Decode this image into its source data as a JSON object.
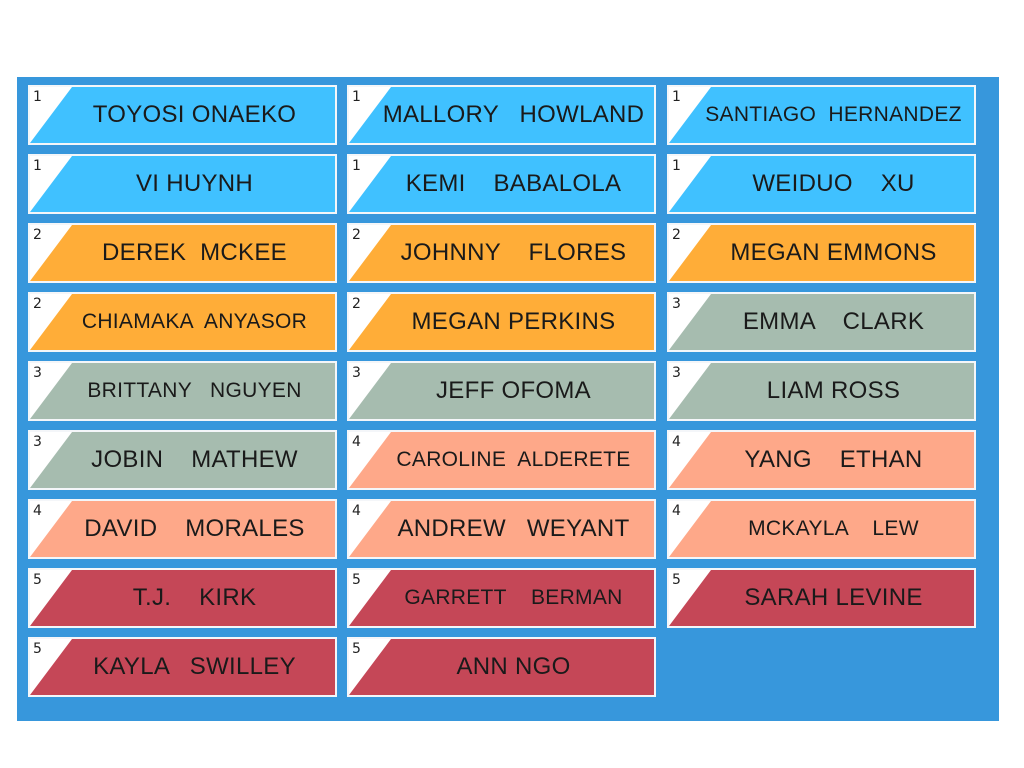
{
  "colors": {
    "board": "#3797dc",
    "group_1": "#40c1ff",
    "group_2": "#ffad38",
    "group_3": "#a6bcaf",
    "group_4": "#fea889",
    "group_5": "#c54757"
  },
  "tiles": [
    {
      "number": "1",
      "name": "TOYOSI ONAEKO"
    },
    {
      "number": "1",
      "name": "MALLORY   HOWLAND"
    },
    {
      "number": "1",
      "name": "SANTIAGO  HERNANDEZ"
    },
    {
      "number": "1",
      "name": "VI HUYNH"
    },
    {
      "number": "1",
      "name": "KEMI    BABALOLA"
    },
    {
      "number": "1",
      "name": "WEIDUO    XU"
    },
    {
      "number": "2",
      "name": "DEREK  MCKEE"
    },
    {
      "number": "2",
      "name": "JOHNNY    FLORES"
    },
    {
      "number": "2",
      "name": "MEGAN EMMONS"
    },
    {
      "number": "2",
      "name": "CHIAMAKA  ANYASOR"
    },
    {
      "number": "2",
      "name": "MEGAN PERKINS"
    },
    {
      "number": "3",
      "name": "EMMA    CLARK"
    },
    {
      "number": "3",
      "name": "BRITTANY   NGUYEN"
    },
    {
      "number": "3",
      "name": "JEFF OFOMA"
    },
    {
      "number": "3",
      "name": "LIAM ROSS"
    },
    {
      "number": "3",
      "name": "JOBIN    MATHEW"
    },
    {
      "number": "4",
      "name": "CAROLINE  ALDERETE"
    },
    {
      "number": "4",
      "name": "YANG    ETHAN"
    },
    {
      "number": "4",
      "name": "DAVID    MORALES"
    },
    {
      "number": "4",
      "name": "ANDREW   WEYANT"
    },
    {
      "number": "4",
      "name": "MCKAYLA    LEW"
    },
    {
      "number": "5",
      "name": "T.J.    KIRK"
    },
    {
      "number": "5",
      "name": "GARRETT    BERMAN"
    },
    {
      "number": "5",
      "name": "SARAH LEVINE"
    },
    {
      "number": "5",
      "name": "KAYLA   SWILLEY"
    },
    {
      "number": "5",
      "name": "ANN NGO"
    }
  ]
}
